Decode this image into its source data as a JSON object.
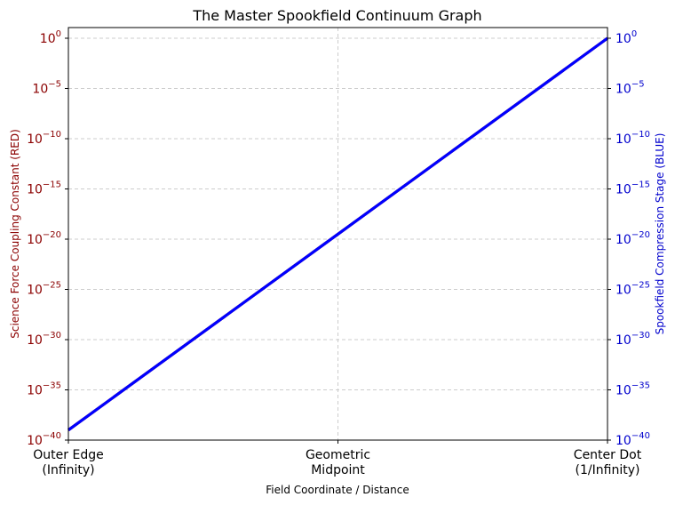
{
  "chart_data": {
    "type": "line",
    "title": "The Master Spookfield Continuum Graph",
    "xlabel": "Field Coordinate / Distance",
    "ylabel_left": "Science Force Coupling Constant (RED)",
    "ylabel_right": "Spookfield Compression Stage (BLUE)",
    "x_ticks": [
      {
        "lines": [
          "Outer Edge",
          "(Infinity)"
        ],
        "value": 0
      },
      {
        "lines": [
          "Geometric",
          "Midpoint"
        ],
        "value": 0.5
      },
      {
        "lines": [
          "Center Dot",
          "(1/Infinity)"
        ],
        "value": 1
      }
    ],
    "xlim": [
      0,
      1
    ],
    "y_scale": "log",
    "ylim_exp": [
      -40,
      1
    ],
    "y_tick_exponents": [
      0,
      -5,
      -10,
      -15,
      -20,
      -25,
      -30,
      -35,
      -40
    ],
    "grid": true,
    "series": [
      {
        "axis": "left",
        "color": "#8b0000",
        "x": [
          0,
          1
        ],
        "y_exp": [
          -39,
          0
        ]
      },
      {
        "axis": "right",
        "color": "#0000ff",
        "x": [
          0,
          1
        ],
        "y_exp": [
          -39,
          0
        ]
      }
    ],
    "left_axis_color": "#8b0000",
    "right_axis_color": "#0000cd"
  }
}
